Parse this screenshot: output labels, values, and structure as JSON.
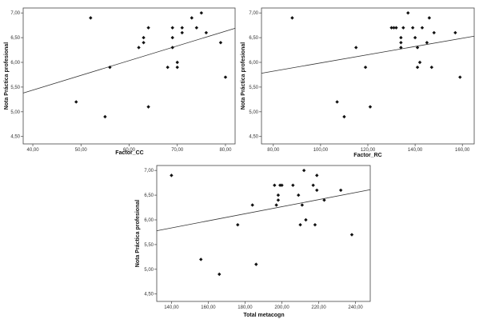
{
  "chart_data": [
    {
      "type": "scatter",
      "xlabel": "Factor_CC",
      "ylabel": "Nota Práctica profesional",
      "xlim": [
        38,
        82
      ],
      "ylim": [
        4.35,
        7.1
      ],
      "xticks": [
        40,
        50,
        60,
        70,
        80
      ],
      "xtick_labels": [
        "40,00",
        "50,00",
        "60,00",
        "70,00",
        "80,00"
      ],
      "yticks": [
        4.5,
        5.0,
        5.5,
        6.0,
        6.5,
        7.0
      ],
      "ytick_labels": [
        "4,50",
        "5,00",
        "5,50",
        "6,00",
        "6,50",
        "7,00"
      ],
      "fit_line": {
        "x": [
          38,
          82
        ],
        "y": [
          5.38,
          6.69
        ]
      },
      "points": [
        {
          "x": 49,
          "y": 5.2
        },
        {
          "x": 52,
          "y": 6.9
        },
        {
          "x": 55,
          "y": 4.9
        },
        {
          "x": 56,
          "y": 5.9
        },
        {
          "x": 62,
          "y": 6.3
        },
        {
          "x": 63,
          "y": 6.4
        },
        {
          "x": 63,
          "y": 6.5
        },
        {
          "x": 64,
          "y": 6.7
        },
        {
          "x": 64,
          "y": 5.1
        },
        {
          "x": 68,
          "y": 5.9
        },
        {
          "x": 69,
          "y": 6.7
        },
        {
          "x": 69,
          "y": 6.5
        },
        {
          "x": 69,
          "y": 6.3
        },
        {
          "x": 70,
          "y": 6.0
        },
        {
          "x": 70,
          "y": 5.9
        },
        {
          "x": 71,
          "y": 6.7
        },
        {
          "x": 71,
          "y": 6.6
        },
        {
          "x": 73,
          "y": 6.9
        },
        {
          "x": 74,
          "y": 6.7
        },
        {
          "x": 75,
          "y": 7.0
        },
        {
          "x": 76,
          "y": 6.6
        },
        {
          "x": 79,
          "y": 6.4
        },
        {
          "x": 80,
          "y": 5.7
        }
      ]
    },
    {
      "type": "scatter",
      "xlabel": "Factor_RC",
      "ylabel": "Nota Práctica profesional",
      "xlim": [
        75,
        165
      ],
      "ylim": [
        4.35,
        7.1
      ],
      "xticks": [
        80,
        100,
        120,
        140,
        160
      ],
      "xtick_labels": [
        "80,00",
        "100,00",
        "120,00",
        "140,00",
        "160,00"
      ],
      "yticks": [
        4.5,
        5.0,
        5.5,
        6.0,
        6.5,
        7.0
      ],
      "ytick_labels": [
        "4,50",
        "5,00",
        "5,50",
        "6,00",
        "6,50",
        "7,00"
      ],
      "fit_line": {
        "x": [
          75,
          165
        ],
        "y": [
          5.78,
          6.53
        ]
      },
      "points": [
        {
          "x": 88,
          "y": 6.9
        },
        {
          "x": 107,
          "y": 5.2
        },
        {
          "x": 110,
          "y": 4.9
        },
        {
          "x": 115,
          "y": 6.3
        },
        {
          "x": 119,
          "y": 5.9
        },
        {
          "x": 121,
          "y": 5.1
        },
        {
          "x": 130,
          "y": 6.7
        },
        {
          "x": 131,
          "y": 6.7
        },
        {
          "x": 132,
          "y": 6.7
        },
        {
          "x": 134,
          "y": 6.5
        },
        {
          "x": 134,
          "y": 6.4
        },
        {
          "x": 134,
          "y": 6.3
        },
        {
          "x": 135,
          "y": 6.7
        },
        {
          "x": 137,
          "y": 7.0
        },
        {
          "x": 139,
          "y": 6.7
        },
        {
          "x": 140,
          "y": 6.5
        },
        {
          "x": 141,
          "y": 5.9
        },
        {
          "x": 141,
          "y": 6.3
        },
        {
          "x": 142,
          "y": 6.0
        },
        {
          "x": 143,
          "y": 6.7
        },
        {
          "x": 145,
          "y": 6.4
        },
        {
          "x": 146,
          "y": 6.9
        },
        {
          "x": 147,
          "y": 5.9
        },
        {
          "x": 148,
          "y": 6.6
        },
        {
          "x": 157,
          "y": 6.6
        },
        {
          "x": 159,
          "y": 5.7
        }
      ]
    },
    {
      "type": "scatter",
      "xlabel": "Total metacogn",
      "ylabel": "Nota Práctica profesional",
      "xlim": [
        132,
        248
      ],
      "ylim": [
        4.35,
        7.1
      ],
      "xticks": [
        140,
        160,
        180,
        200,
        220,
        240
      ],
      "xtick_labels": [
        "140,00",
        "160,00",
        "180,00",
        "200,00",
        "220,00",
        "240,00"
      ],
      "yticks": [
        4.5,
        5.0,
        5.5,
        6.0,
        6.5,
        7.0
      ],
      "ytick_labels": [
        "4,50",
        "5,00",
        "5,50",
        "6,00",
        "6,50",
        "7,00"
      ],
      "fit_line": {
        "x": [
          132,
          248
        ],
        "y": [
          5.78,
          6.61
        ]
      },
      "points": [
        {
          "x": 140,
          "y": 6.9
        },
        {
          "x": 156,
          "y": 5.2
        },
        {
          "x": 166,
          "y": 4.9
        },
        {
          "x": 176,
          "y": 5.9
        },
        {
          "x": 184,
          "y": 6.3
        },
        {
          "x": 186,
          "y": 5.1
        },
        {
          "x": 196,
          "y": 6.7
        },
        {
          "x": 197,
          "y": 6.3
        },
        {
          "x": 198,
          "y": 6.5
        },
        {
          "x": 198,
          "y": 6.4
        },
        {
          "x": 199,
          "y": 6.7
        },
        {
          "x": 200,
          "y": 6.7
        },
        {
          "x": 206,
          "y": 6.7
        },
        {
          "x": 209,
          "y": 6.5
        },
        {
          "x": 210,
          "y": 5.9
        },
        {
          "x": 211,
          "y": 6.3
        },
        {
          "x": 212,
          "y": 7.0
        },
        {
          "x": 213,
          "y": 6.0
        },
        {
          "x": 217,
          "y": 6.7
        },
        {
          "x": 218,
          "y": 5.9
        },
        {
          "x": 219,
          "y": 6.9
        },
        {
          "x": 219,
          "y": 6.6
        },
        {
          "x": 223,
          "y": 6.4
        },
        {
          "x": 232,
          "y": 6.6
        },
        {
          "x": 238,
          "y": 5.7
        }
      ]
    }
  ]
}
